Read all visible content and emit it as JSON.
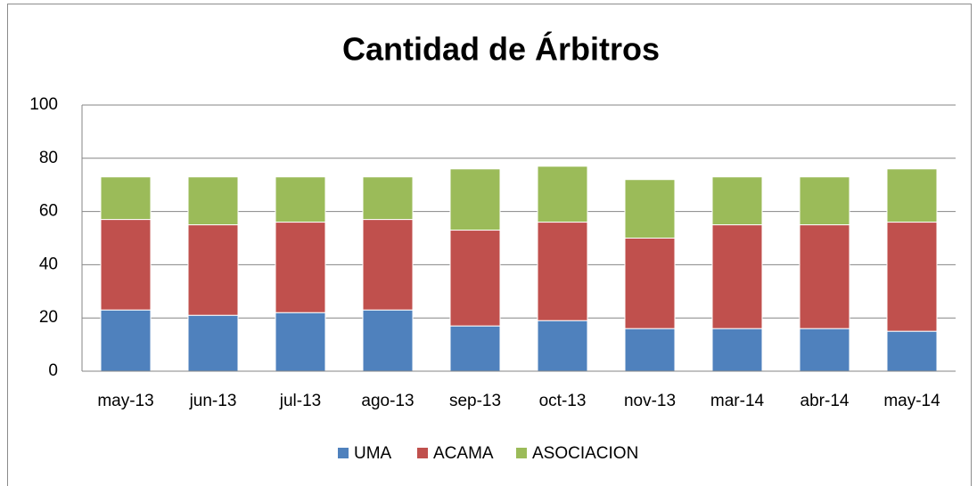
{
  "chart_data": {
    "type": "stacked_bar",
    "title": "Cantidad de Árbitros",
    "categories": [
      "may-13",
      "jun-13",
      "jul-13",
      "ago-13",
      "sep-13",
      "oct-13",
      "nov-13",
      "mar-14",
      "abr-14",
      "may-14"
    ],
    "series": [
      {
        "name": "UMA",
        "color": "#4f81bd",
        "values": [
          23,
          21,
          22,
          23,
          17,
          19,
          16,
          16,
          16,
          15
        ]
      },
      {
        "name": "ACAMA",
        "color": "#c0504d",
        "values": [
          34,
          34,
          34,
          34,
          36,
          37,
          34,
          39,
          39,
          41
        ]
      },
      {
        "name": "ASOCIACION",
        "color": "#9bbb59",
        "values": [
          16,
          18,
          17,
          16,
          23,
          21,
          22,
          18,
          18,
          20
        ]
      }
    ],
    "ylim": [
      0,
      100
    ],
    "yticks": [
      0,
      20,
      40,
      60,
      80,
      100
    ],
    "grid": true,
    "legend": "bottom"
  }
}
